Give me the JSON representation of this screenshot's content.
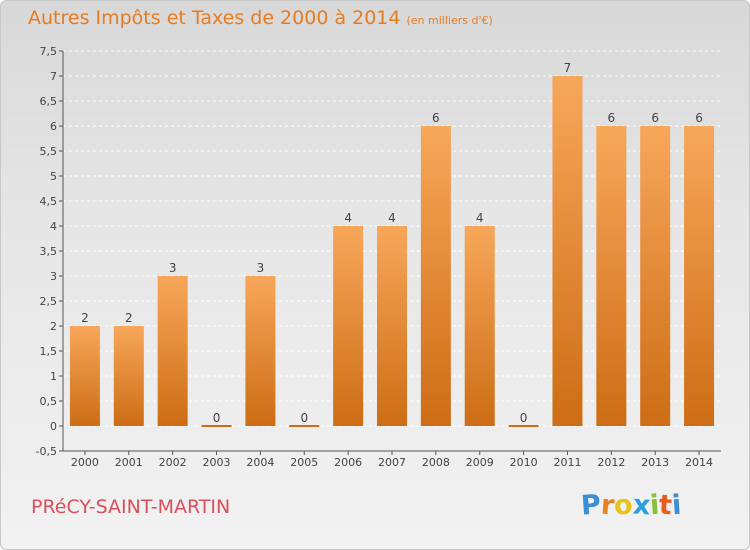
{
  "header": {
    "title": "Autres Impôts et Taxes de 2000 à 2014",
    "unit": "(en milliers d'€)"
  },
  "footer": {
    "commune": "PRéCY-SAINT-MARTIN"
  },
  "logo": {
    "letters": [
      "P",
      "r",
      "o",
      "x",
      "i",
      "t",
      "i"
    ],
    "colors": [
      "#3a8fd6",
      "#e8821c",
      "#e8c21c",
      "#2a9ee0",
      "#88c13a",
      "#e85a1c",
      "#3a8fd6"
    ]
  },
  "colors": {
    "bar_light": "#f7a75a",
    "bar_dark": "#cd6d15",
    "title": "#e87b1e",
    "commune": "#d94f5c"
  },
  "chart_data": {
    "type": "bar",
    "title": "Autres Impôts et Taxes de 2000 à 2014",
    "categories": [
      "2000",
      "2001",
      "2002",
      "2003",
      "2004",
      "2005",
      "2006",
      "2007",
      "2008",
      "2009",
      "2010",
      "2011",
      "2012",
      "2013",
      "2014"
    ],
    "values": [
      2,
      2,
      3,
      0,
      3,
      0,
      4,
      4,
      6,
      4,
      0,
      7,
      6,
      6,
      6
    ],
    "data_labels": [
      "2",
      "2",
      "3",
      "0",
      "3",
      "0",
      "4",
      "4",
      "6",
      "4",
      "0",
      "7",
      "6",
      "6",
      "6"
    ],
    "y_ticks": [
      "-0,5",
      "0",
      "0,5",
      "1",
      "1,5",
      "2",
      "2,5",
      "3",
      "3,5",
      "4",
      "4,5",
      "5",
      "5,5",
      "6",
      "6,5",
      "7",
      "7,5"
    ],
    "y_tick_values": [
      -0.5,
      0,
      0.5,
      1,
      1.5,
      2,
      2.5,
      3,
      3.5,
      4,
      4.5,
      5,
      5.5,
      6,
      6.5,
      7,
      7.5
    ],
    "ylim": [
      -0.5,
      7.5
    ],
    "grid": true,
    "legend": "none"
  }
}
